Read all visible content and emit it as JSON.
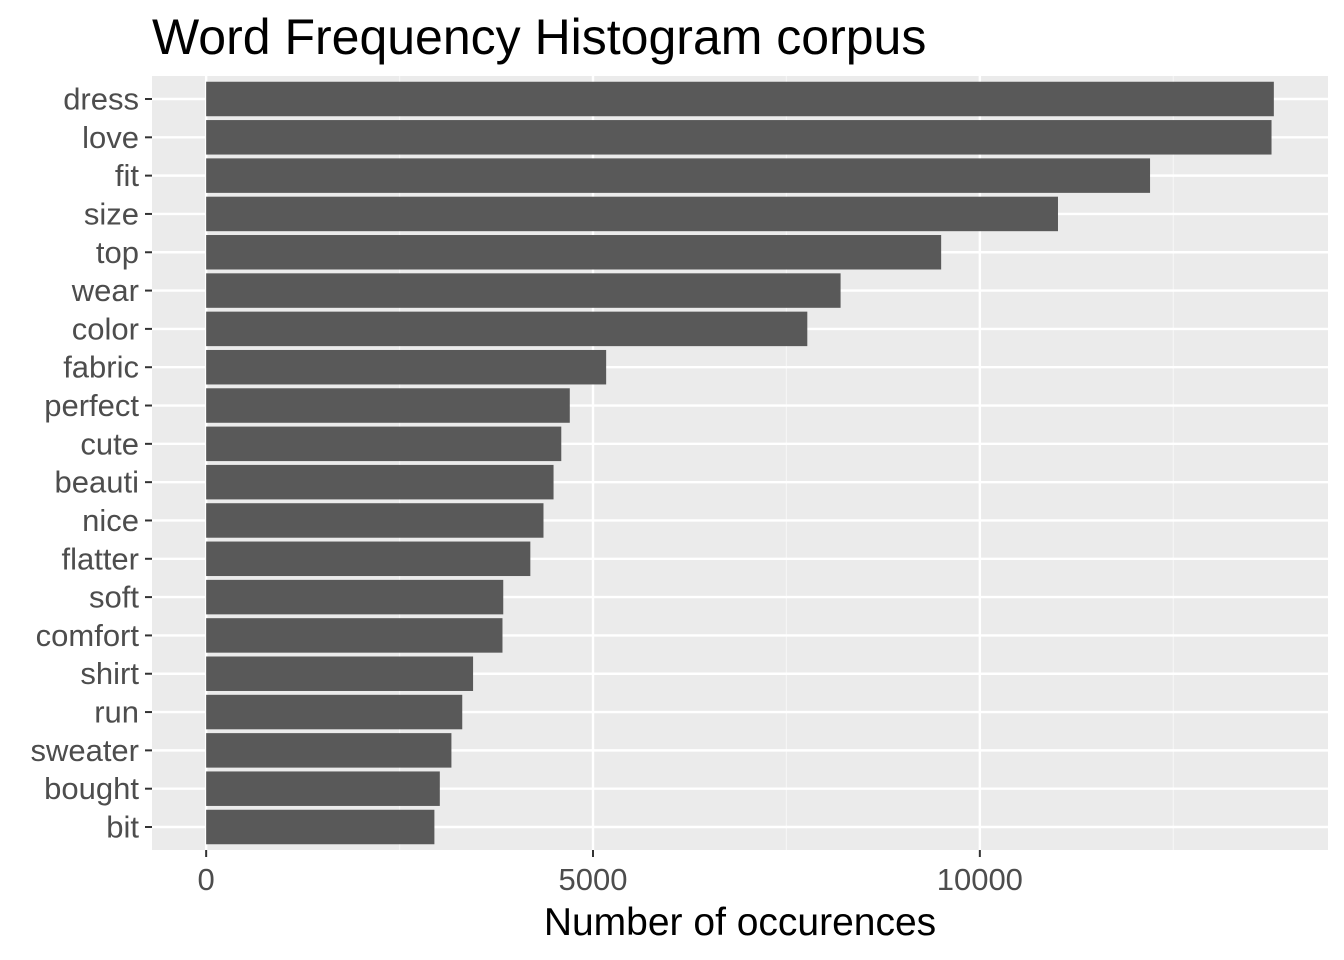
{
  "chart_data": {
    "type": "bar",
    "orientation": "horizontal",
    "title": "Word Frequency Histogram corpus",
    "xlabel": "Number of occurences",
    "ylabel": "",
    "categories": [
      "dress",
      "love",
      "fit",
      "size",
      "top",
      "wear",
      "color",
      "fabric",
      "perfect",
      "cute",
      "beauti",
      "nice",
      "flatter",
      "soft",
      "comfort",
      "shirt",
      "run",
      "sweater",
      "bought",
      "bit"
    ],
    "values": [
      13800,
      13770,
      12200,
      11010,
      9500,
      8200,
      7770,
      5170,
      4700,
      4590,
      4490,
      4360,
      4190,
      3840,
      3830,
      3450,
      3310,
      3170,
      3020,
      2950
    ],
    "xlim": [
      -700,
      14500
    ],
    "xticks": [
      0,
      5000,
      10000
    ],
    "xtick_labels": [
      "0",
      "5000",
      "10000"
    ],
    "grid": true,
    "legend": "none",
    "colors": {
      "bar": "#595959",
      "panel": "#ebebeb",
      "grid_major": "#ffffff",
      "grid_minor": "#f5f5f5",
      "tick_text": "#4d4d4d",
      "title_text": "#000000"
    }
  }
}
